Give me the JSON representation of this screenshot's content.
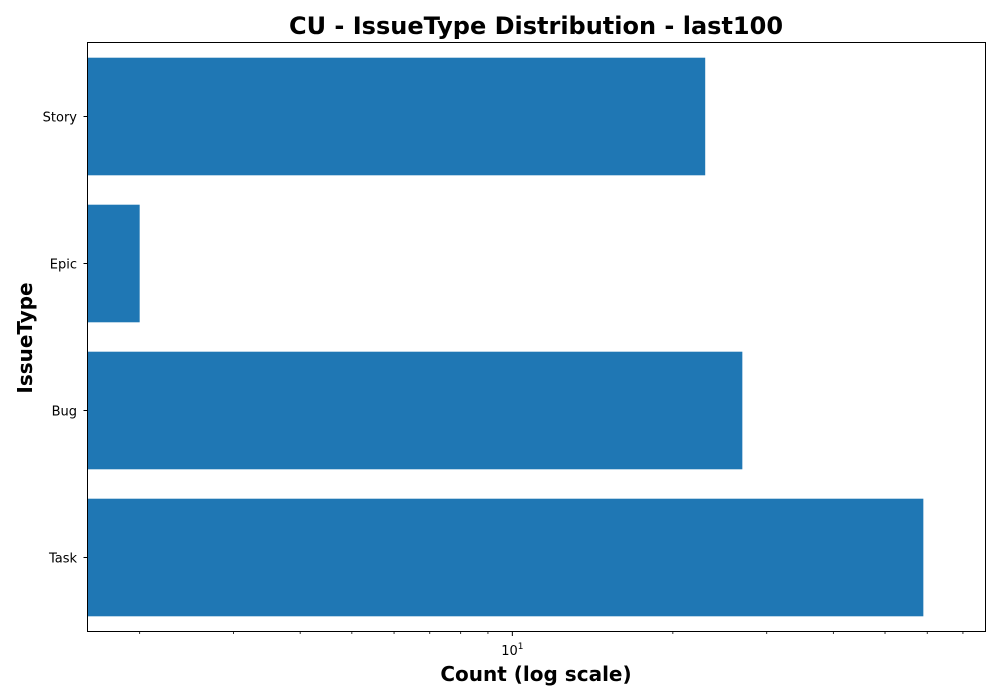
{
  "chart_data": {
    "type": "bar",
    "orientation": "horizontal",
    "title": "CU - IssueType Distribution - last100",
    "xlabel": "Count (log scale)",
    "ylabel": "IssueType",
    "xscale": "log",
    "xlim": [
      1.6,
      77
    ],
    "x_ticks": [
      {
        "value": 10,
        "base": "10",
        "exponent": "1"
      }
    ],
    "categories": [
      "Task",
      "Bug",
      "Epic",
      "Story"
    ],
    "values": [
      59,
      27,
      2,
      23
    ],
    "color": "#1f77b4",
    "grid": false
  }
}
